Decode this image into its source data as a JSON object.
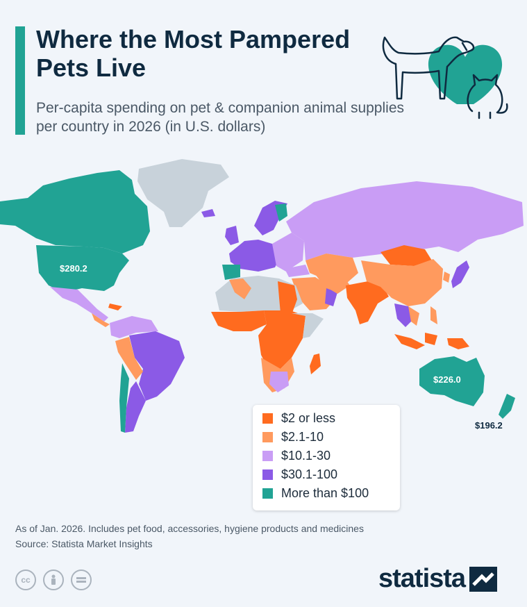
{
  "header": {
    "title": "Where the Most Pampered Pets Live",
    "subtitle": "Per-capita spending on pet & companion animal supplies per country in 2026 (in U.S. dollars)"
  },
  "colors": {
    "accent": "#21a394",
    "no_data": "#c8d2da",
    "le2": "#ff6b1f",
    "r2_10": "#ff9a5e",
    "r10_30": "#c99df5",
    "r30_100": "#8b5ae6",
    "gt100": "#21a394"
  },
  "map_labels": {
    "us": "$280.2",
    "australia": "$226.0",
    "new_zealand": "$196.2"
  },
  "legend": {
    "items": [
      {
        "label": "$2 or less",
        "color": "#ff6b1f"
      },
      {
        "label": "$2.1-10",
        "color": "#ff9a5e"
      },
      {
        "label": "$10.1-30",
        "color": "#c99df5"
      },
      {
        "label": "$30.1-100",
        "color": "#8b5ae6"
      },
      {
        "label": "More than $100",
        "color": "#21a394"
      }
    ]
  },
  "footer": {
    "note": "As of Jan. 2026. Includes pet food, accessories, hygiene products and medicines",
    "source": "Source: Statista Market Insights",
    "brand": "statista",
    "cc_icons": [
      "cc-icon",
      "person-icon",
      "equals-icon"
    ]
  }
}
